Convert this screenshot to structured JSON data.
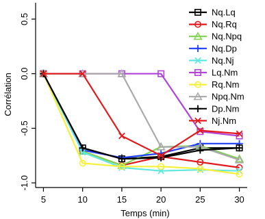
{
  "chart_data": {
    "type": "line",
    "title": "",
    "xlabel": "Temps (min)",
    "ylabel": "Corrélation",
    "x": [
      5,
      10,
      15,
      20,
      25,
      30
    ],
    "xticks": [
      5,
      10,
      15,
      20,
      25,
      30
    ],
    "yticks": [
      {
        "value": 0.5,
        "label": "0.5"
      },
      {
        "value": 0.0,
        "label": "0.0"
      },
      {
        "value": -0.5,
        "label": "-0.5"
      },
      {
        "value": -1.0,
        "label": "-1.0"
      }
    ],
    "xlim": [
      4,
      31
    ],
    "ylim": [
      -1.03,
      0.65
    ],
    "legend_position": "top-right",
    "series": [
      {
        "name": "Nq.Lq",
        "color": "#000000",
        "marker": "square",
        "values": [
          0,
          -0.68,
          -0.78,
          -0.76,
          -0.68,
          -0.68
        ]
      },
      {
        "name": "Nq.Rq",
        "color": "#e31a1c",
        "marker": "circle",
        "values": [
          0,
          -0.71,
          -0.84,
          -0.76,
          -0.81,
          -0.86
        ]
      },
      {
        "name": "Nq.Npq",
        "color": "#7fd34e",
        "marker": "triangle",
        "values": [
          0,
          -0.71,
          -0.84,
          -0.67,
          -0.66,
          -0.78
        ]
      },
      {
        "name": "Nq.Dp",
        "color": "#1f3fff",
        "marker": "plus",
        "values": [
          0,
          -0.7,
          -0.77,
          -0.73,
          -0.64,
          -0.64
        ]
      },
      {
        "name": "Nq.Nj",
        "color": "#5fe8e0",
        "marker": "cross",
        "values": [
          0,
          -0.72,
          -0.86,
          -0.89,
          -0.88,
          -0.89
        ]
      },
      {
        "name": "Lq.Nm",
        "color": "#b044d6",
        "marker": "square",
        "values": [
          0,
          0,
          0,
          0,
          -0.53,
          -0.57
        ]
      },
      {
        "name": "Rq.Nm",
        "color": "#f5f03a",
        "marker": "circle",
        "values": [
          0,
          -0.82,
          -0.85,
          -0.85,
          -0.87,
          -0.92
        ]
      },
      {
        "name": "Npq.Nm",
        "color": "#aaaaaa",
        "marker": "triangle",
        "values": [
          0,
          0,
          0,
          -0.67,
          -0.67,
          -0.79
        ]
      },
      {
        "name": "Dp.Nm",
        "color": "#000000",
        "marker": "plus",
        "values": [
          0,
          -0.68,
          -0.78,
          -0.77,
          -0.7,
          -0.68
        ]
      },
      {
        "name": "Nj.Nm",
        "color": "#e31a1c",
        "marker": "cross",
        "values": [
          0,
          0,
          -0.57,
          -0.75,
          -0.52,
          -0.55
        ]
      }
    ]
  }
}
